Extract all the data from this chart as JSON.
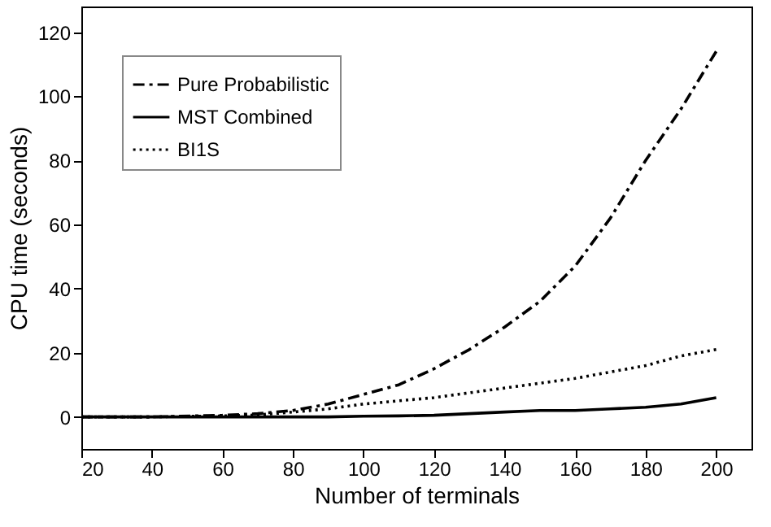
{
  "chart_data": {
    "type": "line",
    "xlabel": "Number of terminals",
    "ylabel": "CPU time (seconds)",
    "x": [
      20,
      40,
      60,
      70,
      80,
      90,
      100,
      110,
      120,
      130,
      140,
      150,
      160,
      170,
      180,
      190,
      200
    ],
    "series": [
      {
        "name": "Pure Probabilistic",
        "color": "#000000",
        "line_style": "dashdot",
        "values": [
          0,
          0,
          0.5,
          1,
          2,
          4,
          7,
          10,
          15,
          21,
          28,
          36,
          47,
          62,
          80,
          96,
          114
        ]
      },
      {
        "name": "MST Combined",
        "color": "#000000",
        "line_style": "solid",
        "values": [
          0,
          0,
          0,
          0,
          0,
          0,
          0.2,
          0.3,
          0.5,
          1,
          1.5,
          2,
          2,
          2.5,
          3,
          4,
          6
        ]
      },
      {
        "name": "BI1S",
        "color": "#000000",
        "line_style": "dotted",
        "values": [
          0,
          0,
          0.3,
          0.6,
          1.5,
          2.5,
          4,
          5,
          6,
          7.5,
          9,
          10.5,
          12,
          14,
          16,
          19,
          21
        ]
      }
    ],
    "xlim": [
      20,
      210
    ],
    "ylim": [
      -10,
      128
    ],
    "xticks": [
      20,
      40,
      60,
      80,
      100,
      120,
      140,
      160,
      180,
      200
    ],
    "yticks": [
      0,
      20,
      40,
      60,
      80,
      100,
      120
    ],
    "grid": false,
    "legend": "top left",
    "marker": "none"
  }
}
